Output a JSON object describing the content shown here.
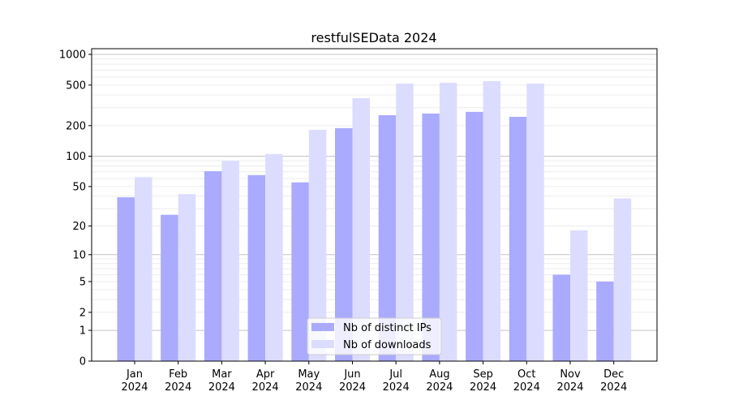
{
  "chart_data": {
    "type": "bar",
    "title": "restfulSEData 2024",
    "xlabel": "",
    "ylabel": "",
    "yscale": "log(1+x)",
    "ylim": [
      0,
      1136
    ],
    "yticks": [
      0,
      1,
      2,
      5,
      10,
      20,
      50,
      100,
      200,
      500,
      1000
    ],
    "ytick_labels": [
      "0",
      "1",
      "2",
      "5",
      "10",
      "20",
      "50",
      "100",
      "200",
      "500",
      "1000"
    ],
    "grid": true,
    "legend_position": "bottom-center",
    "categories": [
      "Jan\n2024",
      "Feb\n2024",
      "Mar\n2024",
      "Apr\n2024",
      "May\n2024",
      "Jun\n2024",
      "Jul\n2024",
      "Aug\n2024",
      "Sep\n2024",
      "Oct\n2024",
      "Nov\n2024",
      "Dec\n2024"
    ],
    "series": [
      {
        "name": "Nb of distinct IPs",
        "color": "#aaaaff",
        "values": [
          39,
          26,
          71,
          65,
          55,
          189,
          253,
          263,
          273,
          244,
          6,
          5
        ]
      },
      {
        "name": "Nb of downloads",
        "color": "#dcdcff",
        "values": [
          62,
          42,
          90,
          105,
          182,
          372,
          517,
          527,
          547,
          517,
          18,
          38
        ]
      }
    ]
  }
}
